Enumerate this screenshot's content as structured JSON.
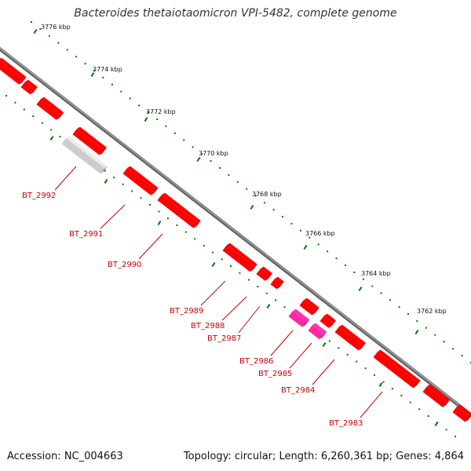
{
  "title": "Bacteroides thetaiotaomicron VPI-5482, complete genome",
  "footer": {
    "accession": "Accession: NC_004663",
    "summary": "Topology: circular; Length: 6,260,361 bp; Genes: 4,864"
  },
  "ruler_labels": [
    "3776 kbp",
    "3774 kbp",
    "3772 kbp",
    "3770 kbp",
    "3768 kbp",
    "3766 kbp",
    "3764 kbp",
    "3762 kbp"
  ],
  "genes": [
    {
      "id": "BT_2992",
      "label": "BT_2992",
      "color": "#cccccc"
    },
    {
      "id": "BT_2991",
      "label": "BT_2991",
      "color": "#ff0000"
    },
    {
      "id": "BT_2990",
      "label": "BT_2990",
      "color": "#ff0000"
    },
    {
      "id": "BT_2989",
      "label": "BT_2989",
      "color": "#ff0000"
    },
    {
      "id": "BT_2988",
      "label": "BT_2988",
      "color": "#ff0000"
    },
    {
      "id": "BT_2987",
      "label": "BT_2987",
      "color": "#ff0000"
    },
    {
      "id": "BT_2986",
      "label": "BT_2986",
      "color": "#ff2a9f"
    },
    {
      "id": "BT_2985",
      "label": "BT_2985",
      "color": "#ff2a9f"
    },
    {
      "id": "BT_2984",
      "label": "BT_2984",
      "color": "#ff0000"
    },
    {
      "id": "BT_2983",
      "label": "BT_2983",
      "color": "#ff0000"
    }
  ],
  "colors": {
    "backbone": "#888888",
    "ruler_dots": "#007700",
    "forward_gene": "#ff0000",
    "pseudo_gene": "#cccccc",
    "rna_gene": "#ff2a9f",
    "label": "#cc0000"
  }
}
